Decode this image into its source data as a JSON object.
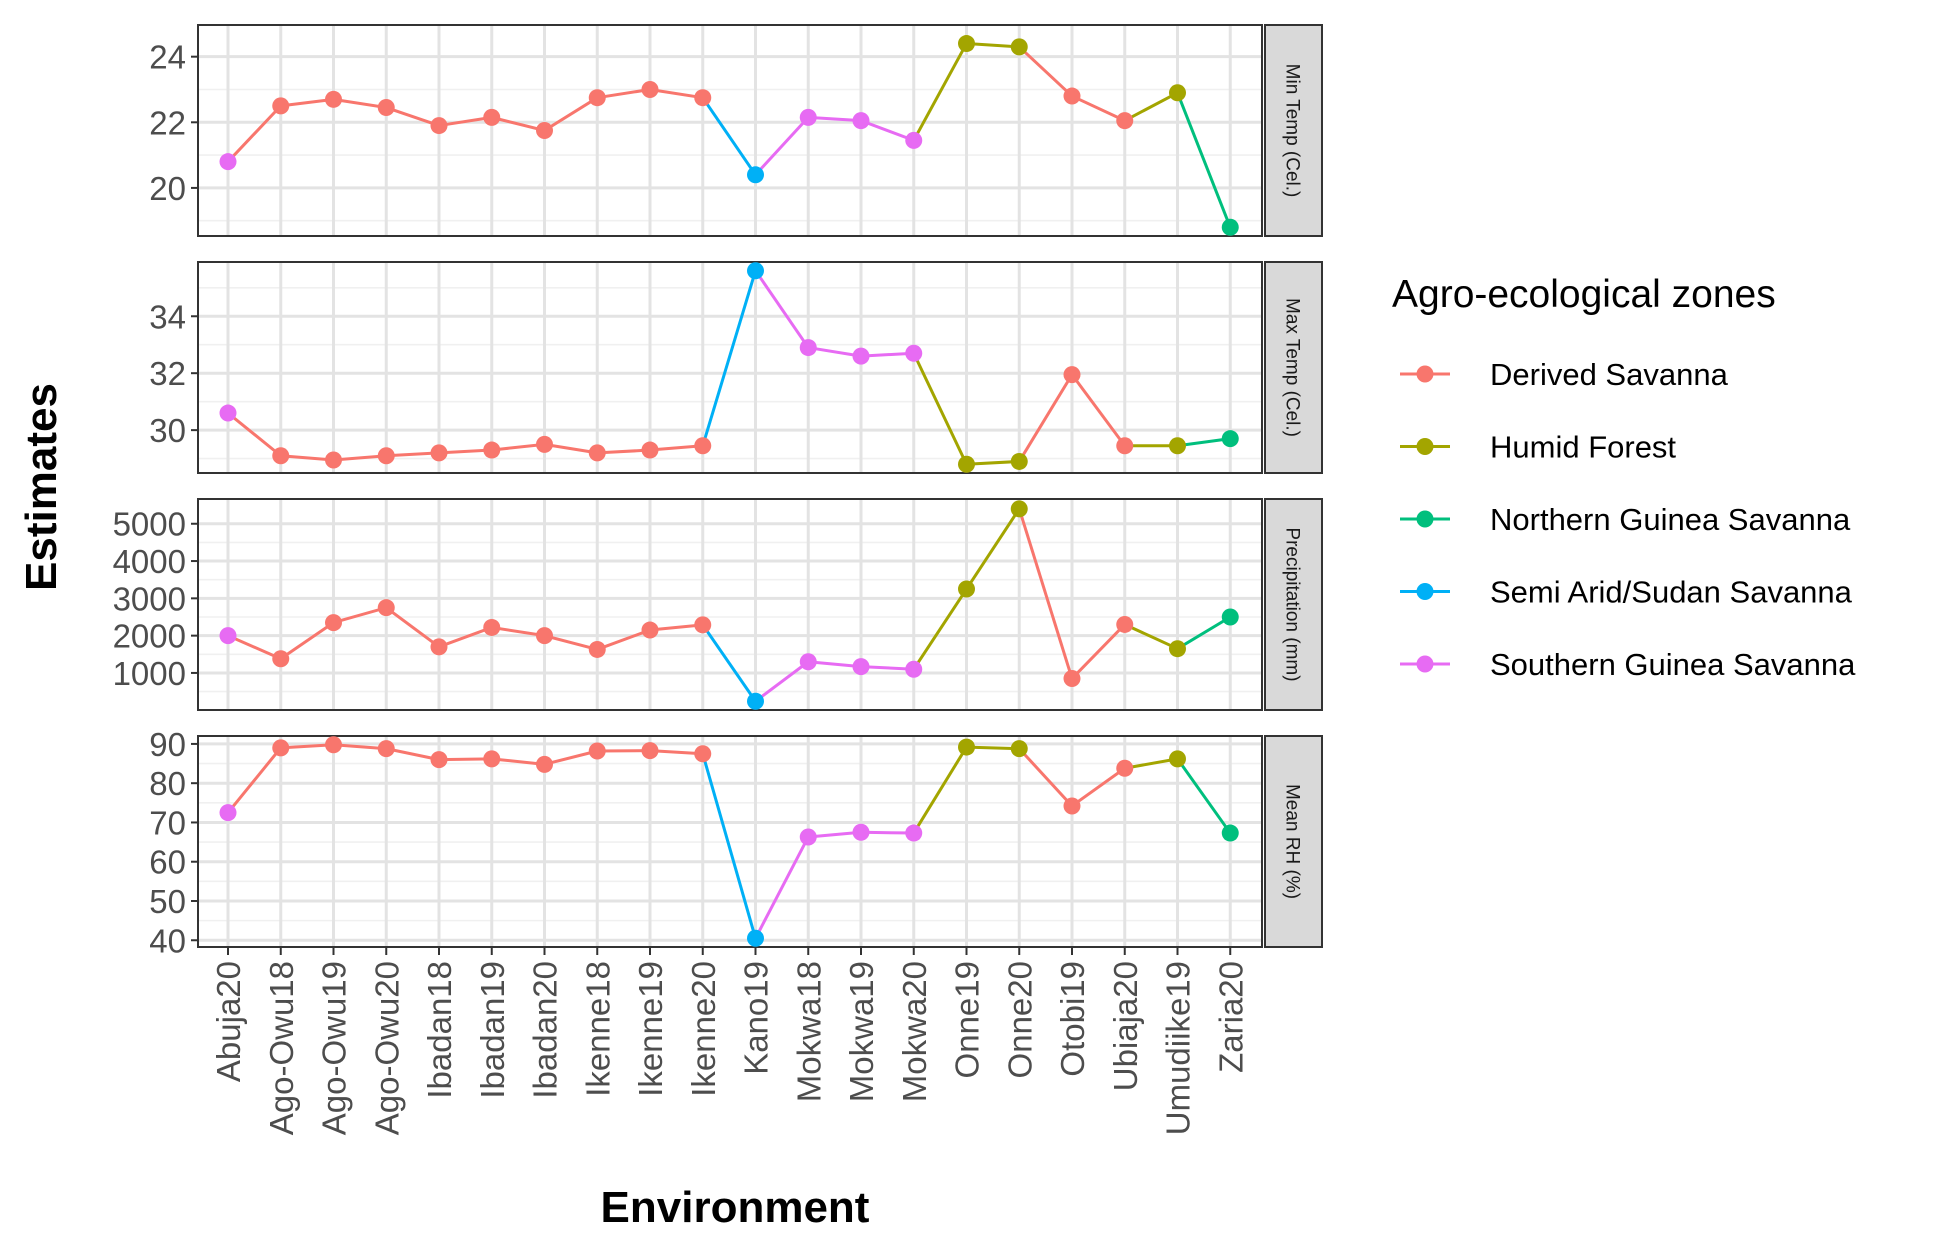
{
  "chart_data": {
    "type": "line",
    "xlabel": "Environment",
    "ylabel": "Estimates",
    "legend": {
      "title": "Agro-ecological zones",
      "placement": "right",
      "entries": [
        {
          "name": "Derived Savanna",
          "color": "#F8766D"
        },
        {
          "name": "Humid Forest",
          "color": "#A3A500"
        },
        {
          "name": "Northern Guinea Savanna",
          "color": "#00BF7D"
        },
        {
          "name": "Semi Arid/Sudan Savanna",
          "color": "#00B0F6"
        },
        {
          "name": "Southern Guinea Savanna",
          "color": "#E76BF3"
        }
      ]
    },
    "categories": [
      "Abuja20",
      "Ago-Owu18",
      "Ago-Owu19",
      "Ago-Owu20",
      "Ibadan18",
      "Ibadan19",
      "Ibadan20",
      "Ikenne18",
      "Ikenne19",
      "Ikenne20",
      "Kano19",
      "Mokwa18",
      "Mokwa19",
      "Mokwa20",
      "Onne19",
      "Onne20",
      "Otobi19",
      "Ubiaja20",
      "Umudiike19",
      "Zaria20"
    ],
    "zones": [
      "Southern Guinea Savanna",
      "Derived Savanna",
      "Derived Savanna",
      "Derived Savanna",
      "Derived Savanna",
      "Derived Savanna",
      "Derived Savanna",
      "Derived Savanna",
      "Derived Savanna",
      "Derived Savanna",
      "Semi Arid/Sudan Savanna",
      "Southern Guinea Savanna",
      "Southern Guinea Savanna",
      "Southern Guinea Savanna",
      "Humid Forest",
      "Humid Forest",
      "Derived Savanna",
      "Derived Savanna",
      "Humid Forest",
      "Northern Guinea Savanna"
    ],
    "grid": true,
    "panels": [
      {
        "strip": "Min Temp (Cel.)",
        "ylim": [
          18.8,
          24.7
        ],
        "yticks": [
          20,
          22,
          24
        ],
        "yticklabels": [
          "20",
          "22",
          "24"
        ],
        "minor": [
          19,
          21,
          23
        ],
        "values": [
          20.8,
          22.5,
          22.7,
          22.45,
          21.9,
          22.15,
          21.75,
          22.75,
          23.0,
          22.75,
          20.4,
          22.15,
          22.05,
          21.45,
          24.4,
          24.3,
          22.8,
          22.05,
          22.9,
          18.8
        ]
      },
      {
        "strip": "Max Temp (Cel.)",
        "ylim": [
          28.8,
          35.6
        ],
        "yticks": [
          30,
          32,
          34
        ],
        "yticklabels": [
          "30",
          "32",
          "34"
        ],
        "minor": [
          29,
          31,
          33,
          35
        ],
        "values": [
          30.6,
          29.1,
          28.95,
          29.1,
          29.2,
          29.3,
          29.5,
          29.2,
          29.3,
          29.45,
          35.6,
          32.9,
          32.6,
          32.7,
          28.8,
          28.9,
          31.95,
          29.45,
          29.45,
          29.7
        ]
      },
      {
        "strip": "Precipitation (mm)",
        "ylim": [
          240,
          5430
        ],
        "yticks": [
          1000,
          2000,
          3000,
          4000,
          5000
        ],
        "yticklabels": [
          "1000",
          "2000",
          "3000",
          "4000",
          "5000"
        ],
        "minor": [
          500,
          1500,
          2500,
          3500,
          4500
        ],
        "values": [
          2000,
          1380,
          2350,
          2750,
          1700,
          2220,
          2000,
          1630,
          2150,
          2290,
          240,
          1300,
          1170,
          1100,
          3250,
          5400,
          850,
          2300,
          1650,
          2500
        ]
      },
      {
        "strip": "Mean RH (%)",
        "ylim": [
          40.5,
          89.8
        ],
        "yticks": [
          40,
          50,
          60,
          70,
          80,
          90
        ],
        "yticklabels": [
          "40",
          "50",
          "60",
          "70",
          "80",
          "90"
        ],
        "minor": [
          45,
          55,
          65,
          75,
          85
        ],
        "values": [
          72.5,
          89.0,
          89.8,
          88.8,
          86.0,
          86.2,
          84.8,
          88.2,
          88.3,
          87.5,
          40.5,
          66.3,
          67.5,
          67.3,
          89.2,
          88.8,
          74.2,
          83.8,
          86.2,
          67.3
        ]
      }
    ]
  }
}
